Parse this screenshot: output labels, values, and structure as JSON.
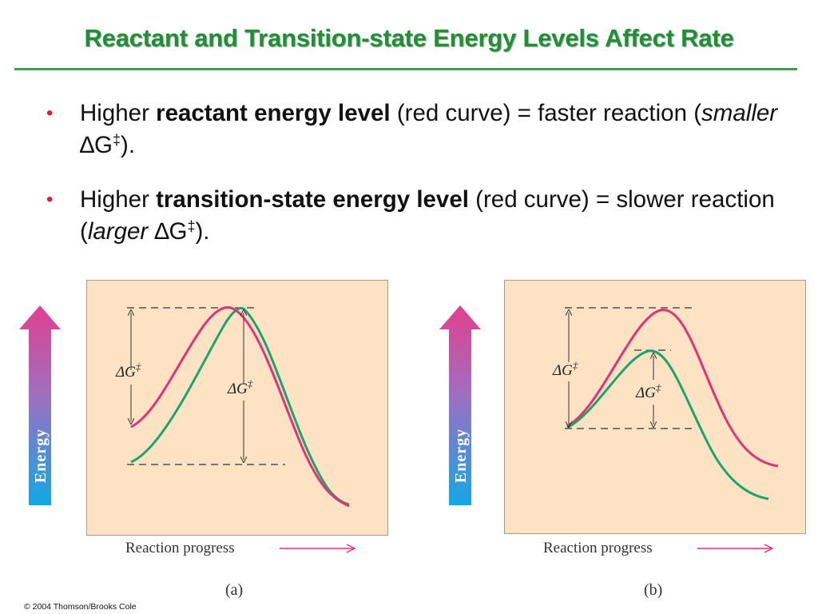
{
  "title": "Reactant and Transition-state Energy Levels Affect Rate",
  "bullets": [
    {
      "pre": "Higher ",
      "bold": "reactant energy level",
      "mid": " (red curve) = faster reaction (",
      "ital": "smaller",
      "delta": " ∆G",
      "dagger": "‡",
      "end": ")."
    },
    {
      "pre": "Higher ",
      "bold": "transition-state energy level",
      "mid": " (red curve) = slower reaction (",
      "ital": "larger",
      "delta": " ∆G",
      "dagger": "‡",
      "end": ")."
    }
  ],
  "figure": {
    "axis_label": "Energy",
    "x_label": "Reaction progress",
    "delta_g_label": "ΔG",
    "dagger": "‡",
    "panels": [
      {
        "label": "(a)"
      },
      {
        "label": "(b)"
      }
    ],
    "colors": {
      "red_curve": "#e0327a",
      "green_curve": "#1aa66a",
      "arrow_top": "#e23f8e",
      "arrow_bottom": "#12a7e6"
    }
  },
  "copyright": "© 2004 Thomson/Brooks Cole"
}
